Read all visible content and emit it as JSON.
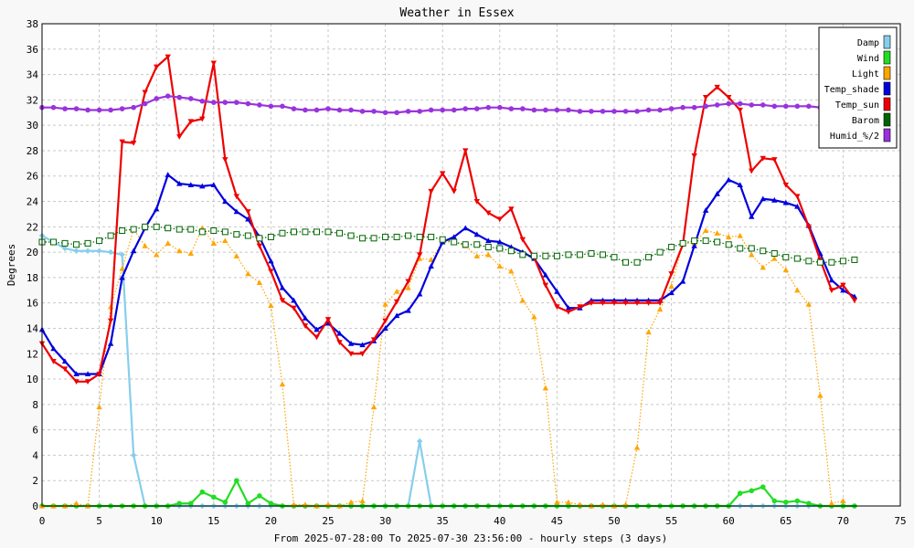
{
  "chart_data": {
    "type": "line",
    "title": "Weather in Essex",
    "xlabel": "From 2025-07-28:00 To 2025-07-30 23:56:00 - hourly steps (3 days)",
    "ylabel": "Degrees",
    "xlim": [
      0,
      75
    ],
    "ylim": [
      0,
      38
    ],
    "xticks": [
      0,
      5,
      10,
      15,
      20,
      25,
      30,
      35,
      40,
      45,
      50,
      55,
      60,
      65,
      70,
      75
    ],
    "yticks": [
      0,
      2,
      4,
      6,
      8,
      10,
      12,
      14,
      16,
      18,
      20,
      22,
      24,
      26,
      28,
      30,
      32,
      34,
      36,
      38
    ],
    "grid": true,
    "legend_position": "top-right",
    "series": [
      {
        "name": "Damp",
        "color": "#87ceeb",
        "marker": "diamond",
        "dash": "solid",
        "values": [
          21.3,
          20.8,
          20.3,
          20.1,
          20.1,
          20.1,
          20.0,
          19.8,
          4.0,
          0,
          0,
          0,
          0,
          0,
          0,
          0,
          0,
          0,
          0,
          0,
          0,
          0,
          0,
          0,
          0,
          0,
          0,
          0,
          0,
          0,
          0,
          0,
          0,
          5.1,
          0,
          0,
          0,
          0,
          0,
          0,
          0,
          0,
          0,
          0,
          0,
          0,
          0,
          0,
          0,
          0,
          0,
          0,
          0,
          0,
          0,
          0,
          0,
          0,
          0,
          0,
          0,
          0,
          0,
          0,
          0,
          0,
          0,
          0,
          0,
          0,
          0,
          0
        ]
      },
      {
        "name": "Wind",
        "color": "#22dd22",
        "marker": "circle",
        "dash": "solid",
        "values": [
          0,
          0,
          0,
          0,
          0,
          0,
          0,
          0,
          0,
          0,
          0,
          0,
          0.2,
          0.2,
          1.1,
          0.7,
          0.3,
          2.0,
          0.2,
          0.8,
          0.2,
          0,
          0,
          0,
          0,
          0,
          0,
          0,
          0,
          0,
          0,
          0,
          0,
          0,
          0,
          0,
          0,
          0,
          0,
          0,
          0,
          0,
          0,
          0,
          0,
          0,
          0,
          0,
          0,
          0,
          0,
          0,
          0,
          0,
          0,
          0,
          0,
          0,
          0,
          0,
          0,
          1.0,
          1.2,
          1.5,
          0.4,
          0.3,
          0.4,
          0.2,
          0,
          0,
          0,
          0
        ]
      },
      {
        "name": "Light",
        "color": "#ffa500",
        "marker": "triangle",
        "dash": "dotted",
        "values": [
          0,
          0,
          0,
          0.2,
          0,
          7.8,
          15.7,
          18.7,
          21.8,
          20.5,
          19.8,
          20.7,
          20.1,
          19.9,
          21.9,
          20.7,
          20.9,
          19.7,
          18.3,
          17.6,
          15.8,
          9.6,
          0.1,
          0.1,
          0,
          0.1,
          0,
          0.3,
          0.4,
          7.8,
          15.9,
          16.9,
          17.2,
          19.5,
          19.4,
          20.8,
          20.8,
          20.5,
          19.7,
          19.8,
          18.9,
          18.5,
          16.2,
          14.9,
          9.3,
          0.3,
          0.3,
          0.1,
          0,
          0.1,
          0,
          0.1,
          4.6,
          13.7,
          15.5,
          17.3,
          20.7,
          20.7,
          21.7,
          21.5,
          21.2,
          21.3,
          19.8,
          18.8,
          19.5,
          18.6,
          17.0,
          15.9,
          8.7,
          0.2,
          0.4
        ]
      },
      {
        "name": "Temp_shade",
        "color": "#0000dd",
        "marker": "triangle",
        "dash": "solid",
        "values": [
          13.9,
          12.4,
          11.4,
          10.4,
          10.4,
          10.4,
          12.8,
          18.0,
          20.1,
          21.9,
          23.4,
          26.1,
          25.4,
          25.3,
          25.2,
          25.3,
          24.0,
          23.2,
          22.6,
          21.2,
          19.3,
          17.2,
          16.2,
          14.8,
          13.9,
          14.4,
          13.6,
          12.8,
          12.7,
          13.0,
          14.0,
          15.0,
          15.4,
          16.7,
          18.9,
          20.8,
          21.2,
          21.9,
          21.4,
          20.9,
          20.8,
          20.4,
          20.0,
          19.5,
          18.2,
          16.9,
          15.6,
          15.6,
          16.2,
          16.2,
          16.2,
          16.2,
          16.2,
          16.2,
          16.2,
          16.8,
          17.7,
          20.5,
          23.3,
          24.6,
          25.7,
          25.3,
          22.8,
          24.2,
          24.1,
          23.9,
          23.6,
          22.1,
          19.9,
          17.8,
          17.0,
          16.5
        ]
      },
      {
        "name": "Temp_sun",
        "color": "#ee0000",
        "marker": "triangle-down",
        "dash": "solid",
        "values": [
          12.8,
          11.4,
          10.8,
          9.8,
          9.8,
          10.4,
          14.6,
          28.7,
          28.6,
          32.6,
          34.6,
          35.4,
          29.1,
          30.3,
          30.5,
          34.9,
          27.3,
          24.4,
          23.2,
          20.5,
          18.5,
          16.2,
          15.6,
          14.2,
          13.3,
          14.7,
          12.9,
          12.0,
          12.0,
          13.1,
          14.6,
          16.1,
          17.7,
          19.8,
          24.8,
          26.2,
          24.8,
          28.0,
          24.0,
          23.1,
          22.6,
          23.4,
          21.0,
          19.6,
          17.4,
          15.7,
          15.3,
          15.7,
          16.0,
          16.0,
          16.0,
          16.0,
          16.0,
          16.0,
          16.0,
          18.3,
          20.6,
          27.6,
          32.2,
          33.0,
          32.2,
          31.2,
          26.4,
          27.4,
          27.3,
          25.3,
          24.4,
          22.0,
          19.4,
          17.0,
          17.4,
          16.2
        ]
      },
      {
        "name": "Barom",
        "color": "#006400",
        "marker": "square",
        "dash": "dotted",
        "values": [
          20.8,
          20.8,
          20.7,
          20.6,
          20.7,
          20.9,
          21.3,
          21.7,
          21.8,
          22.0,
          22.0,
          21.9,
          21.8,
          21.8,
          21.6,
          21.7,
          21.6,
          21.4,
          21.3,
          21.1,
          21.2,
          21.5,
          21.6,
          21.6,
          21.6,
          21.6,
          21.5,
          21.3,
          21.1,
          21.1,
          21.2,
          21.2,
          21.3,
          21.2,
          21.2,
          21.0,
          20.8,
          20.6,
          20.6,
          20.4,
          20.3,
          20.1,
          19.8,
          19.7,
          19.7,
          19.7,
          19.8,
          19.8,
          19.9,
          19.8,
          19.6,
          19.2,
          19.2,
          19.6,
          20.0,
          20.4,
          20.7,
          20.9,
          20.9,
          20.8,
          20.6,
          20.3,
          20.3,
          20.1,
          19.9,
          19.6,
          19.5,
          19.3,
          19.2,
          19.2,
          19.3,
          19.4
        ]
      },
      {
        "name": "Humid_%/2",
        "color": "#9933dd",
        "marker": "circle",
        "dash": "solid",
        "values": [
          31.4,
          31.4,
          31.3,
          31.3,
          31.2,
          31.2,
          31.2,
          31.3,
          31.4,
          31.7,
          32.1,
          32.3,
          32.2,
          32.1,
          31.9,
          31.8,
          31.8,
          31.8,
          31.7,
          31.6,
          31.5,
          31.5,
          31.3,
          31.2,
          31.2,
          31.3,
          31.2,
          31.2,
          31.1,
          31.1,
          31.0,
          31.0,
          31.1,
          31.1,
          31.2,
          31.2,
          31.2,
          31.3,
          31.3,
          31.4,
          31.4,
          31.3,
          31.3,
          31.2,
          31.2,
          31.2,
          31.2,
          31.1,
          31.1,
          31.1,
          31.1,
          31.1,
          31.1,
          31.2,
          31.2,
          31.3,
          31.4,
          31.4,
          31.5,
          31.6,
          31.7,
          31.7,
          31.6,
          31.6,
          31.5,
          31.5,
          31.5,
          31.5,
          31.4,
          31.4,
          31.4,
          31.4
        ]
      }
    ]
  }
}
